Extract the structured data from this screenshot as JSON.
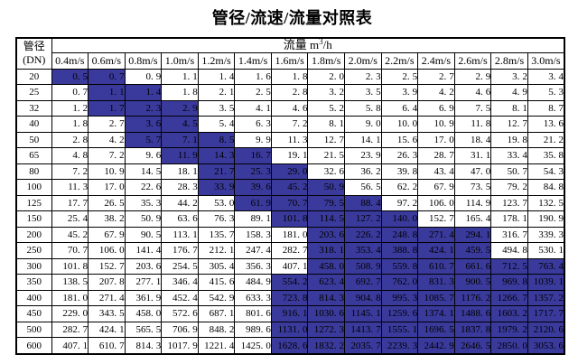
{
  "page": {
    "title": "管径/流速/流量对照表"
  },
  "table": {
    "corner_header": {
      "line1": "管径",
      "line2": "(DN)"
    },
    "flow_header": {
      "pre": "流量 m",
      "sup": "3",
      "post": "/h"
    },
    "velocity_headers": [
      "0.4m/s",
      "0.6m/s",
      "0.8m/s",
      "1.0m/s",
      "1.2m/s",
      "1.4m/s",
      "1.6m/s",
      "1.8m/s",
      "2.0m/s",
      "2.2m/s",
      "2.4m/s",
      "2.6m/s",
      "2.8m/s",
      "3.0m/s"
    ],
    "colors": {
      "highlight_background": "#3A3A9C",
      "highlight_text": "#1C1C5E",
      "border": "#000000",
      "text": "#000000",
      "page_background": "#FFFFFF"
    },
    "rows": [
      {
        "dn": "20",
        "values": [
          "0.5",
          "0.7",
          "0.9",
          "1.1",
          "1.4",
          "1.6",
          "1.8",
          "2.0",
          "2.3",
          "2.5",
          "2.7",
          "2.9",
          "3.2",
          "3.4"
        ],
        "highlighted": [
          0,
          1
        ]
      },
      {
        "dn": "25",
        "values": [
          "0.7",
          "1.1",
          "1.4",
          "1.8",
          "2.1",
          "2.5",
          "2.8",
          "3.2",
          "3.5",
          "3.9",
          "4.2",
          "4.6",
          "4.9",
          "5.3"
        ],
        "highlighted": [
          1,
          2
        ]
      },
      {
        "dn": "32",
        "values": [
          "1.2",
          "1.7",
          "2.3",
          "2.9",
          "3.5",
          "4.1",
          "4.6",
          "5.2",
          "5.8",
          "6.4",
          "6.9",
          "7.5",
          "8.1",
          "8.7"
        ],
        "highlighted": [
          1,
          2,
          3
        ]
      },
      {
        "dn": "40",
        "values": [
          "1.8",
          "2.7",
          "3.6",
          "4.5",
          "5.4",
          "6.3",
          "7.2",
          "8.1",
          "9.0",
          "10.0",
          "10.9",
          "11.8",
          "12.7",
          "13.6"
        ],
        "highlighted": [
          2,
          3
        ]
      },
      {
        "dn": "50",
        "values": [
          "2.8",
          "4.2",
          "5.7",
          "7.1",
          "8.5",
          "9.9",
          "11.3",
          "12.7",
          "14.1",
          "15.6",
          "17.0",
          "18.4",
          "19.8",
          "21.2"
        ],
        "highlighted": [
          2,
          3,
          4
        ]
      },
      {
        "dn": "65",
        "values": [
          "4.8",
          "7.2",
          "9.6",
          "11.9",
          "14.3",
          "16.7",
          "19.1",
          "21.5",
          "23.9",
          "26.3",
          "28.7",
          "31.1",
          "33.4",
          "35.8"
        ],
        "highlighted": [
          3,
          4,
          5
        ]
      },
      {
        "dn": "80",
        "values": [
          "7.2",
          "10.9",
          "14.5",
          "18.1",
          "21.7",
          "25.3",
          "29.0",
          "32.6",
          "36.2",
          "39.8",
          "43.4",
          "47.0",
          "50.7",
          "54.3"
        ],
        "highlighted": [
          4,
          5,
          6
        ]
      },
      {
        "dn": "100",
        "values": [
          "11.3",
          "17.0",
          "22.6",
          "28.3",
          "33.9",
          "39.6",
          "45.2",
          "50.9",
          "56.5",
          "62.2",
          "67.9",
          "73.5",
          "79.2",
          "84.8"
        ],
        "highlighted": [
          4,
          5,
          6,
          7
        ]
      },
      {
        "dn": "125",
        "values": [
          "17.7",
          "26.5",
          "35.3",
          "44.2",
          "53.0",
          "61.9",
          "70.7",
          "79.5",
          "88.4",
          "97.2",
          "106.0",
          "114.9",
          "123.7",
          "132.5"
        ],
        "highlighted": [
          5,
          6,
          7,
          8
        ]
      },
      {
        "dn": "150",
        "values": [
          "25.4",
          "38.2",
          "50.9",
          "63.6",
          "76.3",
          "89.1",
          "101.8",
          "114.5",
          "127.2",
          "140.0",
          "152.7",
          "165.4",
          "178.1",
          "190.9"
        ],
        "highlighted": [
          6,
          7,
          8,
          9
        ]
      },
      {
        "dn": "200",
        "values": [
          "45.2",
          "67.9",
          "90.5",
          "113.1",
          "135.7",
          "158.3",
          "181.0",
          "203.6",
          "226.2",
          "248.8",
          "271.4",
          "294.1",
          "316.7",
          "339.3"
        ],
        "highlighted": [
          7,
          8,
          9,
          10,
          11
        ]
      },
      {
        "dn": "250",
        "values": [
          "70.7",
          "106.0",
          "141.4",
          "176.7",
          "212.1",
          "247.4",
          "282.7",
          "318.1",
          "353.4",
          "388.8",
          "424.1",
          "459.5",
          "494.8",
          "530.1"
        ],
        "highlighted": [
          7,
          8,
          9,
          10,
          11
        ]
      },
      {
        "dn": "300",
        "values": [
          "101.8",
          "152.7",
          "203.6",
          "254.5",
          "305.4",
          "356.3",
          "407.1",
          "458.0",
          "508.9",
          "559.8",
          "610.7",
          "661.6",
          "712.5",
          "763.4"
        ],
        "highlighted": [
          7,
          8,
          9,
          10,
          11,
          12,
          13
        ]
      },
      {
        "dn": "350",
        "values": [
          "138.5",
          "207.8",
          "277.1",
          "346.4",
          "415.6",
          "484.9",
          "554.2",
          "623.4",
          "692.7",
          "762.0",
          "831.3",
          "900.5",
          "969.8",
          "1039.1"
        ],
        "highlighted": [
          6,
          7,
          8,
          9,
          10,
          11,
          12,
          13
        ]
      },
      {
        "dn": "400",
        "values": [
          "181.0",
          "271.4",
          "361.9",
          "452.4",
          "542.9",
          "633.3",
          "723.8",
          "814.3",
          "904.8",
          "995.3",
          "1085.7",
          "1176.2",
          "1266.7",
          "1357.2"
        ],
        "highlighted": [
          6,
          7,
          8,
          9,
          10,
          11,
          12,
          13
        ]
      },
      {
        "dn": "450",
        "values": [
          "229.0",
          "343.5",
          "458.0",
          "572.6",
          "687.1",
          "801.6",
          "916.1",
          "1030.6",
          "1145.1",
          "1259.6",
          "1374.1",
          "1488.6",
          "1603.2",
          "1717.7"
        ],
        "highlighted": [
          6,
          7,
          8,
          9,
          10,
          11,
          12,
          13
        ]
      },
      {
        "dn": "500",
        "values": [
          "282.7",
          "424.1",
          "565.5",
          "706.9",
          "848.2",
          "989.6",
          "1131.0",
          "1272.3",
          "1413.7",
          "1555.1",
          "1696.5",
          "1837.8",
          "1979.2",
          "2120.6"
        ],
        "highlighted": [
          6,
          7,
          8,
          9,
          10,
          11,
          12,
          13
        ]
      },
      {
        "dn": "600",
        "values": [
          "407.1",
          "610.7",
          "814.3",
          "1017.9",
          "1221.4",
          "1425.0",
          "1628.6",
          "1832.2",
          "2035.7",
          "2239.3",
          "2442.9",
          "2646.5",
          "2850.0",
          "3053.6"
        ],
        "highlighted": [
          6,
          7,
          8,
          9,
          10,
          11,
          12,
          13
        ]
      }
    ]
  }
}
